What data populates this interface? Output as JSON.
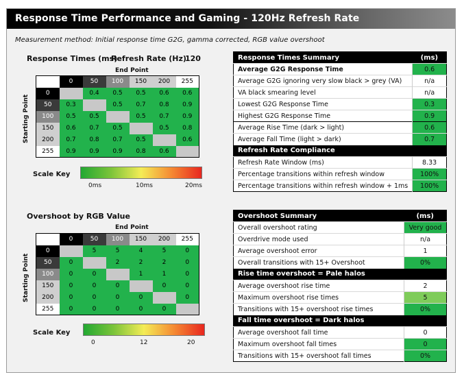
{
  "title": "Response Time Performance and Gaming - 120Hz Refresh Rate",
  "method": "Measurement method: Initial response time G2G, gamma corrected, RGB value overshoot",
  "response": {
    "section_title": "Response Times (ms)",
    "refresh_label": "Refresh Rate (Hz)",
    "refresh_value": "120",
    "end_point_label": "End Point",
    "start_point_label": "Starting Point",
    "levels": [
      "0",
      "50",
      "100",
      "150",
      "200",
      "255"
    ],
    "rows": [
      [
        "",
        "0.4",
        "0.5",
        "0.5",
        "0.6",
        "0.6"
      ],
      [
        "0.3",
        "",
        "0.5",
        "0.7",
        "0.8",
        "0.9"
      ],
      [
        "0.5",
        "0.5",
        "",
        "0.5",
        "0.7",
        "0.9"
      ],
      [
        "0.6",
        "0.7",
        "0.5",
        "",
        "0.5",
        "0.8"
      ],
      [
        "0.7",
        "0.8",
        "0.7",
        "0.5",
        "",
        "0.6"
      ],
      [
        "0.9",
        "0.9",
        "0.9",
        "0.8",
        "0.6",
        ""
      ]
    ],
    "scale_label": "Scale Key",
    "scale_ticks": [
      "0ms",
      "10ms",
      "20ms"
    ]
  },
  "overshoot": {
    "section_title": "Overshoot by RGB Value",
    "end_point_label": "End Point",
    "start_point_label": "Starting Point",
    "levels": [
      "0",
      "50",
      "100",
      "150",
      "200",
      "255"
    ],
    "rows": [
      [
        "",
        "5",
        "5",
        "4",
        "5",
        "0"
      ],
      [
        "0",
        "",
        "2",
        "2",
        "2",
        "0"
      ],
      [
        "0",
        "0",
        "",
        "1",
        "1",
        "0"
      ],
      [
        "0",
        "0",
        "0",
        "",
        "0",
        "0"
      ],
      [
        "0",
        "0",
        "0",
        "0",
        "",
        "0"
      ],
      [
        "0",
        "0",
        "0",
        "0",
        "0",
        ""
      ]
    ],
    "scale_label": "Scale Key",
    "scale_ticks": [
      "0",
      "12",
      "20"
    ]
  },
  "rt_summary": {
    "header": "Response Times Summary",
    "unit": "(ms)",
    "rows": [
      {
        "label": "Average G2G Response Time",
        "value": "0.6"
      },
      {
        "label": "Average G2G ignoring very slow black > grey (VA)",
        "value": "n/a"
      },
      {
        "label": "VA black smearing level",
        "value": "n/a"
      },
      {
        "label": "Lowest G2G Response Time",
        "value": "0.3"
      },
      {
        "label": "Highest G2G Response Time",
        "value": "0.9"
      },
      {
        "label": "Average Rise Time (dark > light)",
        "value": "0.6"
      },
      {
        "label": "Average Fall Time (light > dark)",
        "value": "0.7"
      }
    ],
    "compliance_header": "Refresh Rate Compliance",
    "compliance_rows": [
      {
        "label": "Refresh Rate Window (ms)",
        "value": "8.33"
      },
      {
        "label": "Percentage transitions within refresh window",
        "value": "100%"
      },
      {
        "label": "Percentage transitions within refresh window + 1ms",
        "value": "100%"
      }
    ]
  },
  "os_summary": {
    "header": "Overshoot Summary",
    "unit": "(ms)",
    "rows": [
      {
        "label": "Overall overshoot rating",
        "value": "Very good"
      },
      {
        "label": "Overdrive mode used",
        "value": "n/a"
      },
      {
        "label": "Average overshoot error",
        "value": "1"
      },
      {
        "label": "Overall transitions with 15+ Overshoot",
        "value": "0%"
      }
    ],
    "rise_header": "Rise time overshoot = Pale halos",
    "rise_rows": [
      {
        "label": "Average overshoot rise time",
        "value": "2"
      },
      {
        "label": "Maximum overshoot rise times",
        "value": "5"
      },
      {
        "label": "Transitions with 15+ overshoot rise times",
        "value": "0%"
      }
    ],
    "fall_header": "Fall time overshoot = Dark halos",
    "fall_rows": [
      {
        "label": "Average overshoot fall time",
        "value": "0"
      },
      {
        "label": "Maximum overshoot fall times",
        "value": "0"
      },
      {
        "label": "Transitions with 15+ overshoot fall times",
        "value": "0%"
      }
    ]
  },
  "colors": {
    "green": "#22b24c",
    "light_green": "#7fcc5a",
    "white": "#ffffff",
    "diagonal_gray": "#c8c8c8"
  }
}
